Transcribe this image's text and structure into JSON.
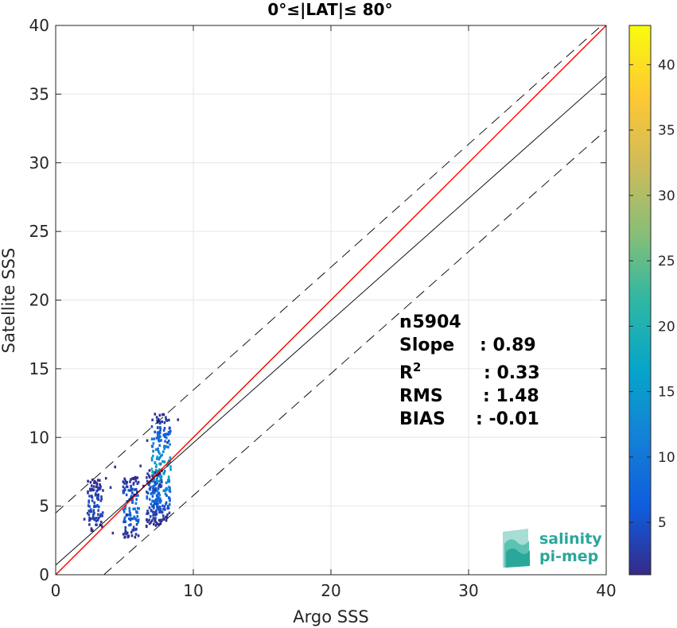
{
  "chart_data": {
    "type": "heatmap",
    "title": "0°≤|LAT|≤ 80°",
    "xlabel": "Argo SSS",
    "ylabel": "Satellite SSS",
    "xlim": [
      0,
      40
    ],
    "ylim": [
      0,
      40
    ],
    "xticks": [
      0,
      10,
      20,
      30,
      40
    ],
    "yticks": [
      0,
      5,
      10,
      15,
      20,
      25,
      30,
      35,
      40
    ],
    "grid": true,
    "colorbar": {
      "colormap": "parula",
      "range": [
        1,
        43
      ],
      "ticks": [
        5,
        10,
        15,
        20,
        25,
        30,
        35,
        40
      ]
    },
    "reference_lines": [
      {
        "name": "1:1",
        "color": "#ff0000",
        "style": "solid",
        "points": [
          [
            0,
            0
          ],
          [
            40,
            40
          ]
        ]
      },
      {
        "name": "fit",
        "color": "#000000",
        "style": "solid",
        "points": [
          [
            0,
            0.7
          ],
          [
            40,
            36.3
          ]
        ]
      },
      {
        "name": "upper",
        "color": "#000000",
        "style": "dashed",
        "points": [
          [
            0,
            4.5
          ],
          [
            40,
            40.3
          ]
        ]
      },
      {
        "name": "lower",
        "color": "#000000",
        "style": "dashed",
        "points": [
          [
            3.5,
            0
          ],
          [
            40,
            32.4
          ]
        ]
      }
    ],
    "density_clusters": [
      {
        "x": 2.8,
        "y_min": 3.3,
        "y_max": 7.0,
        "peak": 6
      },
      {
        "x": 5.4,
        "y_min": 2.8,
        "y_max": 7.2,
        "peak": 12
      },
      {
        "x": 7.1,
        "y_min": 3.6,
        "y_max": 7.8,
        "peak": 9
      },
      {
        "x": 7.6,
        "y_min": 4.0,
        "y_max": 11.8,
        "peak": 22
      }
    ],
    "stats": [
      {
        "label": "n",
        "value": ": 5904"
      },
      {
        "label": "Slope",
        "value": ": 0.89"
      },
      {
        "label": "R",
        "sup": "2",
        "value": ": 0.33"
      },
      {
        "label": "RMS",
        "value": ": 1.48"
      },
      {
        "label": "BIAS",
        "value": ": -0.01"
      }
    ]
  },
  "logo": {
    "line1": "salinity",
    "line2": "pi-mep"
  }
}
